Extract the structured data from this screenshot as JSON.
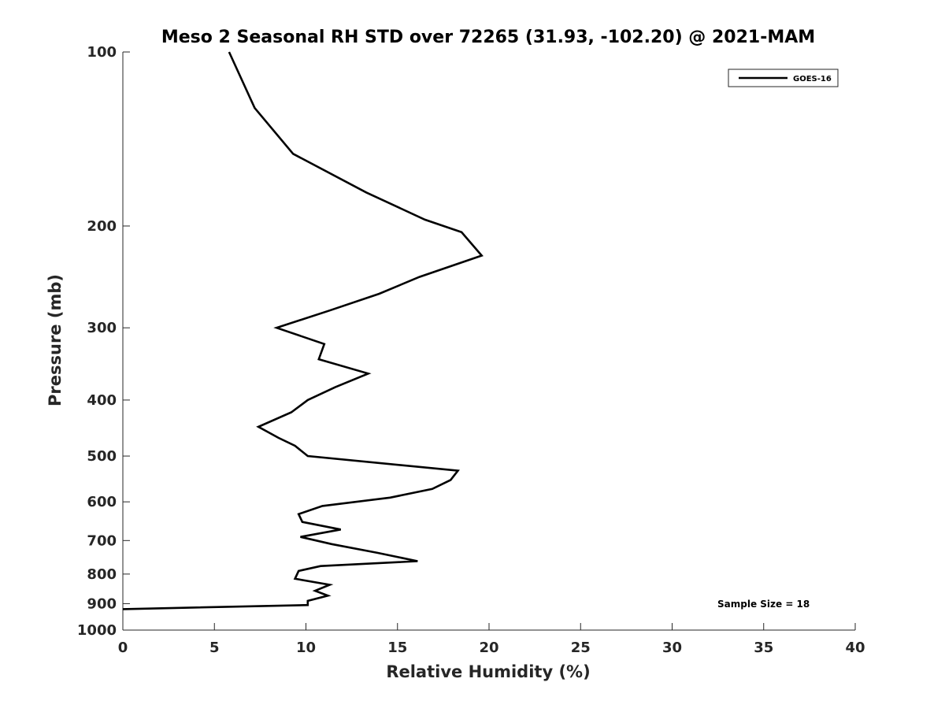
{
  "chart_data": {
    "type": "line",
    "title": "Meso 2 Seasonal RH STD over 72265 (31.93, -102.20) @ 2021-MAM",
    "xlabel": "Relative Humidity (%)",
    "ylabel": "Pressure (mb)",
    "xlim": [
      0,
      40
    ],
    "ylim": [
      100,
      1000
    ],
    "yscale": "log",
    "yreversed": true,
    "xticks": [
      0,
      5,
      10,
      15,
      20,
      25,
      30,
      35,
      40
    ],
    "yticks": [
      100,
      200,
      300,
      400,
      500,
      600,
      700,
      800,
      900,
      1000
    ],
    "grid": false,
    "legend_position": "top-right",
    "annotation": "Sample Size = 18",
    "series": [
      {
        "name": "GOES-16",
        "color": "#000000",
        "points": [
          [
            5.8,
            100
          ],
          [
            7.2,
            125
          ],
          [
            9.3,
            150
          ],
          [
            13.3,
            175
          ],
          [
            16.5,
            195
          ],
          [
            18.5,
            205
          ],
          [
            19.6,
            225
          ],
          [
            16.2,
            245
          ],
          [
            14.0,
            262
          ],
          [
            11.3,
            280
          ],
          [
            8.4,
            300
          ],
          [
            11.0,
            320
          ],
          [
            10.7,
            340
          ],
          [
            13.4,
            360
          ],
          [
            11.6,
            380
          ],
          [
            10.1,
            400
          ],
          [
            9.2,
            420
          ],
          [
            7.4,
            445
          ],
          [
            8.5,
            465
          ],
          [
            9.4,
            480
          ],
          [
            10.1,
            500
          ],
          [
            18.3,
            530
          ],
          [
            17.9,
            550
          ],
          [
            16.9,
            570
          ],
          [
            14.6,
            590
          ],
          [
            10.9,
            610
          ],
          [
            9.6,
            630
          ],
          [
            9.8,
            650
          ],
          [
            11.9,
            670
          ],
          [
            9.7,
            690
          ],
          [
            11.4,
            710
          ],
          [
            13.9,
            735
          ],
          [
            16.1,
            760
          ],
          [
            10.8,
            775
          ],
          [
            9.6,
            790
          ],
          [
            9.4,
            815
          ],
          [
            11.3,
            835
          ],
          [
            10.5,
            855
          ],
          [
            11.2,
            872
          ],
          [
            10.1,
            890
          ],
          [
            10.1,
            905
          ],
          [
            0,
            920
          ]
        ]
      }
    ]
  }
}
